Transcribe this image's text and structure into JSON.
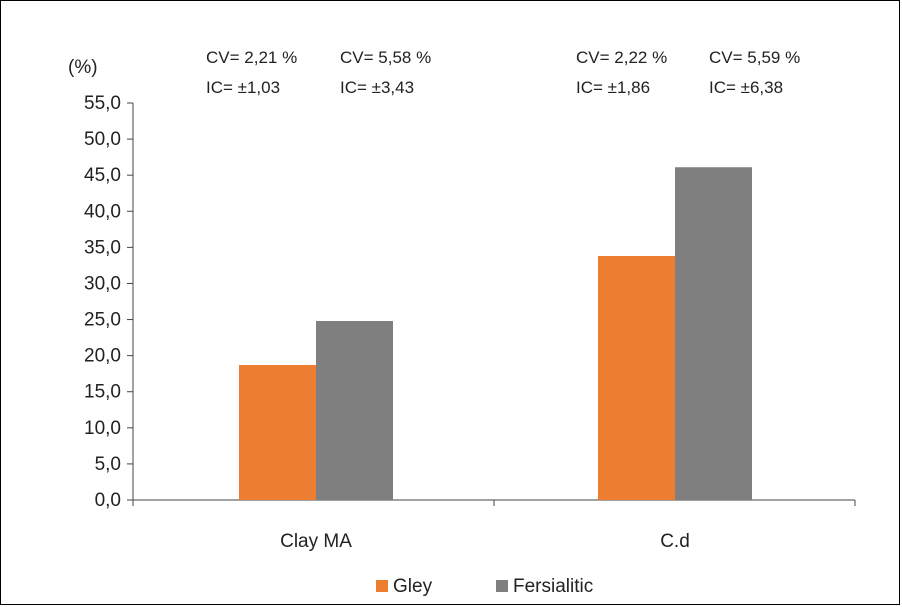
{
  "chart_data": {
    "type": "bar",
    "title": "",
    "xlabel": "",
    "ylabel": "",
    "unit_label": "(%)",
    "categories": [
      "Clay MA",
      "C.d"
    ],
    "series": [
      {
        "name": "Gley",
        "values": [
          18.7,
          33.8
        ],
        "color": "#ED7D31"
      },
      {
        "name": "Fersialitic",
        "values": [
          24.8,
          46.1
        ],
        "color": "#7F7F7F"
      }
    ],
    "ylim": [
      0,
      55
    ],
    "ytick_step": 5,
    "ytick_labels": [
      "0,0",
      "5,0",
      "10,0",
      "15,0",
      "20,0",
      "25,0",
      "30,0",
      "35,0",
      "40,0",
      "45,0",
      "50,0",
      "55,0"
    ],
    "grid": false,
    "legend_position": "bottom",
    "annotations": [
      {
        "category": "Clay MA",
        "series": "Gley",
        "cv": "CV= 2,21 %",
        "ic": "IC= ±1,03"
      },
      {
        "category": "Clay MA",
        "series": "Fersialitic",
        "cv": "CV= 5,58 %",
        "ic": "IC= ±3,43"
      },
      {
        "category": "C.d",
        "series": "Gley",
        "cv": "CV= 2,22 %",
        "ic": "IC= ±1,86"
      },
      {
        "category": "C.d",
        "series": "Fersialitic",
        "cv": "CV= 5,59 %",
        "ic": "IC= ±6,38"
      }
    ]
  }
}
